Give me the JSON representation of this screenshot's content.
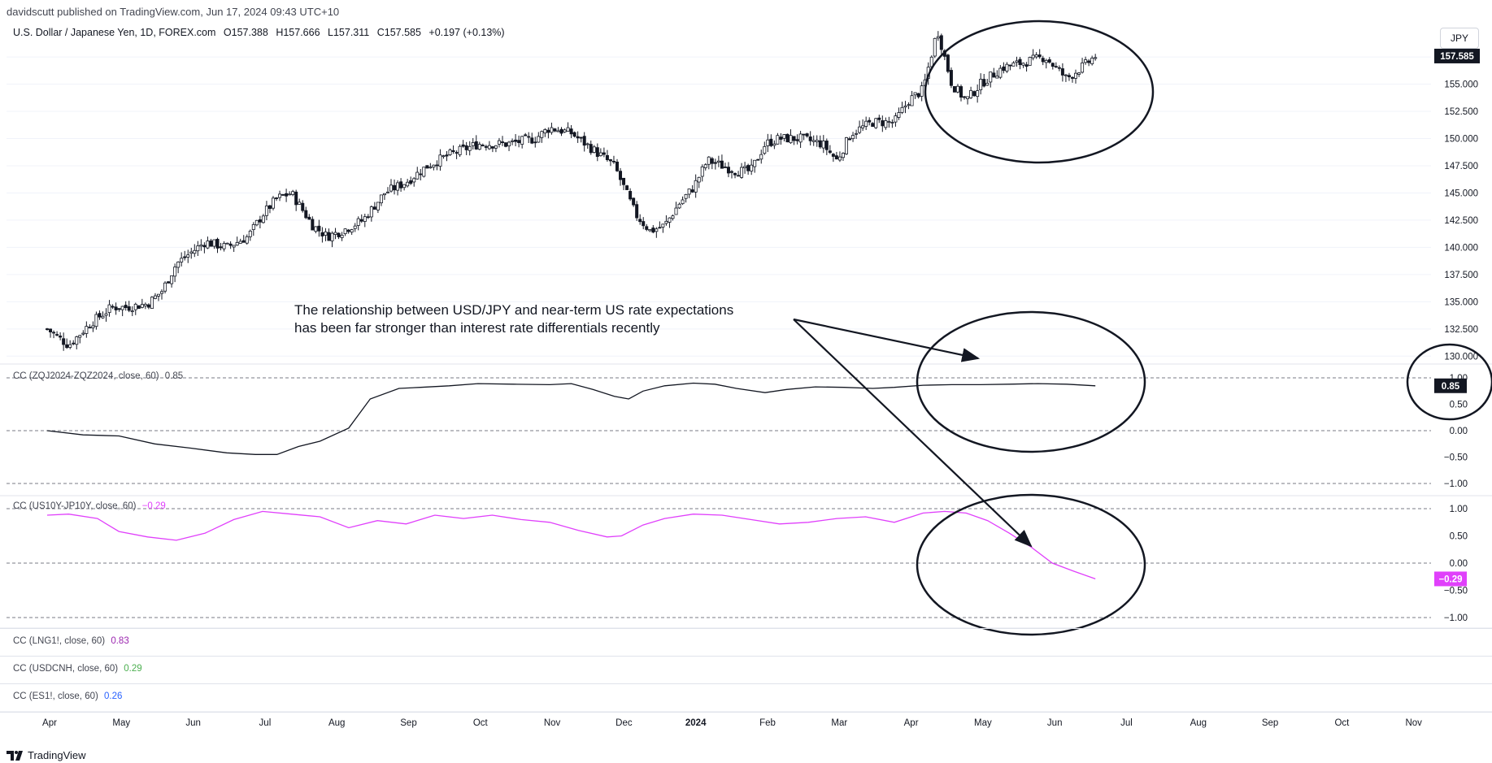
{
  "header": {
    "published": "davidscutt published on TradingView.com, Jun 17, 2024 09:43 UTC+10"
  },
  "symbol": {
    "name": "U.S. Dollar / Japanese Yen, 1D, FOREX.com",
    "open": "O157.388",
    "high": "H157.666",
    "low": "L157.311",
    "close": "C157.585",
    "change": "+0.197 (+0.13%)",
    "currency": "JPY"
  },
  "annotation": {
    "line1": "The relationship between USD/JPY and near-term US rate expectations",
    "line2": "has been far stronger than interest rate differentials recently"
  },
  "indicators": {
    "cc1": {
      "label": "CC (ZQJ2024-ZQZ2024, close, 60)",
      "value": "0.85",
      "badge": "0.85"
    },
    "cc2": {
      "label": "CC (US10Y-JP10Y, close, 60)",
      "value": "−0.29",
      "badge": "−0.29"
    },
    "cc3": {
      "label": "CC (LNG1!, close, 60)",
      "value": "0.83"
    },
    "cc4": {
      "label": "CC (USDCNH, close, 60)",
      "value": "0.29"
    },
    "cc5": {
      "label": "CC (ES1!, close, 60)",
      "value": "0.26"
    }
  },
  "price_badge": "157.585",
  "footer": {
    "brand": "TradingView"
  },
  "colors": {
    "up": "#089981",
    "cc1_line": "#131722",
    "cc2_line": "#e040fb",
    "cc3_value": "#9c27b0",
    "cc4_value": "#4caf50",
    "cc5_value": "#2962ff",
    "badge_dark": "#131722",
    "badge_purple": "#e040fb"
  },
  "chart_data": [
    {
      "type": "candlestick",
      "title": "U.S. Dollar / Japanese Yen, 1D, FOREX.com",
      "x_ticks": [
        "Apr",
        "May",
        "Jun",
        "Jul",
        "Aug",
        "Sep",
        "Oct",
        "Nov",
        "Dec",
        "2024",
        "Feb",
        "Mar",
        "Apr",
        "May",
        "Jun",
        "Jul",
        "Aug",
        "Sep",
        "Oct",
        "Nov"
      ],
      "y_ticks": [
        "157.500",
        "155.000",
        "152.500",
        "150.000",
        "147.500",
        "145.000",
        "142.500",
        "140.000",
        "137.500",
        "135.000",
        "132.500",
        "130.000"
      ],
      "ylim": [
        129.5,
        159.0
      ],
      "x_axis_approx_months_from_apr_2023": [
        0,
        15
      ],
      "close_path_months": [
        0,
        0.3,
        0.6,
        0.9,
        1.1,
        1.4,
        1.6,
        1.8,
        2.0,
        2.2,
        2.5,
        2.8,
        3.0,
        3.2,
        3.4,
        3.7,
        3.9,
        4.1,
        4.4,
        4.7,
        5.0,
        5.3,
        5.6,
        6.0,
        6.4,
        6.8,
        7.0,
        7.3,
        7.6,
        7.9,
        8.0,
        8.2,
        8.4,
        8.6,
        8.8,
        9.0,
        9.2,
        9.4,
        9.6,
        9.8,
        10.0,
        10.2,
        10.5,
        10.8,
        11.0,
        11.2,
        11.5,
        11.8,
        12.0,
        12.2,
        12.4,
        12.6,
        12.8,
        13.0,
        13.1,
        13.3,
        13.6,
        13.9,
        14.2,
        14.5,
        14.6
      ],
      "close_path_values": [
        132.5,
        131.0,
        133.0,
        134.5,
        134.5,
        134.8,
        136.0,
        138.5,
        139.5,
        140.5,
        140.0,
        141.0,
        143.0,
        144.5,
        145.0,
        142.0,
        141.0,
        141.5,
        142.5,
        145.0,
        146.0,
        147.5,
        148.5,
        149.5,
        149.5,
        150.0,
        151.0,
        150.5,
        149.0,
        147.5,
        146.0,
        143.0,
        141.5,
        142.0,
        144.0,
        145.5,
        148.0,
        147.5,
        147.0,
        147.0,
        149.5,
        150.0,
        150.0,
        149.5,
        148.0,
        150.5,
        151.5,
        151.5,
        153.5,
        154.5,
        160.0,
        155.0,
        153.5,
        155.0,
        155.5,
        156.5,
        157.0,
        157.5,
        155.5,
        157.0,
        157.585
      ],
      "last": 157.585
    },
    {
      "type": "line",
      "name": "CC (ZQJ2024-ZQZ2024, close, 60)",
      "y_ticks": [
        "1.00",
        "0.50",
        "0.00",
        "−0.50",
        "−1.00"
      ],
      "ylim": [
        -1.0,
        1.0
      ],
      "x_months": [
        0,
        0.5,
        1.0,
        1.5,
        2.0,
        2.5,
        2.9,
        3.2,
        3.5,
        3.8,
        4.2,
        4.5,
        4.9,
        5.2,
        5.6,
        6.0,
        6.5,
        7.0,
        7.3,
        7.6,
        7.9,
        8.1,
        8.3,
        8.6,
        9.0,
        9.3,
        9.6,
        10.0,
        10.3,
        10.7,
        11.1,
        11.5,
        11.8,
        12.2,
        12.6,
        13.0,
        13.4,
        13.8,
        14.2,
        14.6
      ],
      "values": [
        0.0,
        -0.08,
        -0.1,
        -0.25,
        -0.33,
        -0.42,
        -0.45,
        -0.45,
        -0.3,
        -0.2,
        0.05,
        0.6,
        0.8,
        0.82,
        0.85,
        0.89,
        0.88,
        0.87,
        0.89,
        0.78,
        0.65,
        0.6,
        0.75,
        0.85,
        0.9,
        0.88,
        0.8,
        0.72,
        0.78,
        0.83,
        0.82,
        0.8,
        0.82,
        0.86,
        0.87,
        0.87,
        0.88,
        0.89,
        0.88,
        0.85
      ],
      "last": 0.85
    },
    {
      "type": "line",
      "name": "CC (US10Y-JP10Y, close, 60)",
      "y_ticks": [
        "1.00",
        "0.50",
        "0.00",
        "−0.50",
        "−1.00"
      ],
      "ylim": [
        -1.0,
        1.0
      ],
      "x_months": [
        0,
        0.3,
        0.7,
        1.0,
        1.4,
        1.8,
        2.2,
        2.6,
        3.0,
        3.4,
        3.8,
        4.2,
        4.6,
        5.0,
        5.4,
        5.8,
        6.2,
        6.6,
        7.0,
        7.4,
        7.8,
        8.0,
        8.3,
        8.6,
        9.0,
        9.4,
        9.8,
        10.2,
        10.6,
        11.0,
        11.4,
        11.8,
        12.2,
        12.5,
        12.8,
        13.1,
        13.4,
        13.7,
        14.0,
        14.3,
        14.6
      ],
      "values": [
        0.88,
        0.9,
        0.82,
        0.58,
        0.48,
        0.42,
        0.55,
        0.8,
        0.95,
        0.9,
        0.85,
        0.65,
        0.78,
        0.72,
        0.88,
        0.82,
        0.88,
        0.8,
        0.75,
        0.6,
        0.48,
        0.5,
        0.7,
        0.82,
        0.9,
        0.88,
        0.8,
        0.72,
        0.75,
        0.82,
        0.85,
        0.75,
        0.92,
        0.95,
        0.92,
        0.78,
        0.55,
        0.3,
        0.0,
        -0.15,
        -0.29
      ],
      "last": -0.29
    }
  ]
}
